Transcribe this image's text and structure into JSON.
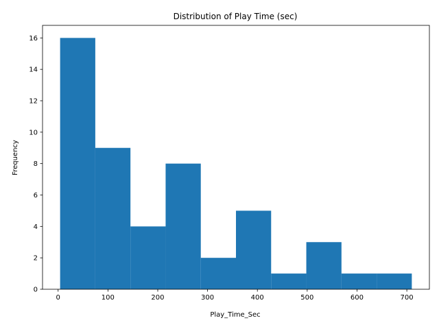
{
  "chart_data": {
    "type": "bar",
    "title": "Distribution of Play Time (sec)",
    "xlabel": "Play_Time_Sec",
    "ylabel": "Frequency",
    "bin_edges": [
      4,
      74.6,
      145.2,
      215.8,
      286.4,
      357,
      427.6,
      498.2,
      568.8,
      639.4,
      710
    ],
    "values": [
      16,
      9,
      4,
      8,
      2,
      5,
      1,
      3,
      1,
      1
    ],
    "xlim": [
      -31.3,
      745.3
    ],
    "ylim": [
      0,
      16.8
    ],
    "xticks": [
      0,
      100,
      200,
      300,
      400,
      500,
      600,
      700
    ],
    "yticks": [
      0,
      2,
      4,
      6,
      8,
      10,
      12,
      14,
      16
    ],
    "grid": false,
    "bar_color": "#1f77b4"
  }
}
